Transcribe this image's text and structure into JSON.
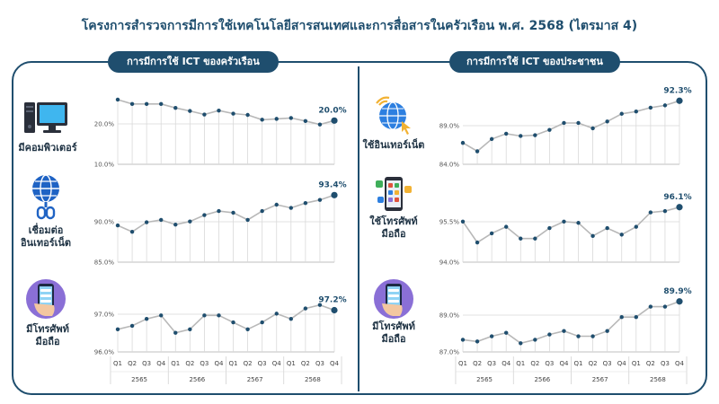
{
  "title": "โครงการสำรวจการมีการใช้เทคโนโลยีสารสนเทศและการสื่อสารในครัวเรือน พ.ศ. 2568 (ไตรมาส 4)",
  "sections": {
    "household": "การมีการใช้ ICT ของครัวเรือน",
    "population": "การมีการใช้ ICT ของประชาชน"
  },
  "axis": {
    "quarters": [
      "Q1",
      "Q2",
      "Q3",
      "Q4",
      "Q1",
      "Q2",
      "Q3",
      "Q4",
      "Q1",
      "Q2",
      "Q3",
      "Q4",
      "Q1",
      "Q2",
      "Q3",
      "Q4"
    ],
    "years": [
      "2565",
      "2566",
      "2567",
      "2568"
    ]
  },
  "labels": {
    "hh_computer": [
      "มีคอมพิวเตอร์"
    ],
    "hh_internet": [
      "เชื่อมต่อ",
      "อินเทอร์เน็ต"
    ],
    "hh_mobile": [
      "มีโทรศัพท์",
      "มือถือ"
    ],
    "pop_internet": [
      "ใช้อินเทอร์เน็ต"
    ],
    "pop_mobile_use": [
      "ใช้โทรศัพท์",
      "มือถือ"
    ],
    "pop_mobile_own": [
      "มีโทรศัพท์",
      "มือถือ"
    ]
  },
  "colors": {
    "navy": "#1f4e6e",
    "line": "#b8b8b8",
    "point": "#1f4e6e",
    "grid": "#d9d9d9"
  },
  "icons": {
    "hh_computer": "desktop-computer-icon",
    "hh_internet": "globe-link-icon",
    "hh_mobile": "smartphone-hand-icon",
    "pop_internet": "globe-cursor-icon",
    "pop_mobile_use": "smartphone-apps-icon",
    "pop_mobile_own": "smartphone-hand-icon"
  },
  "chart_data": [
    {
      "id": "hh_computer",
      "type": "line",
      "title": "มีคอมพิวเตอร์",
      "yticks": [
        "20.0%",
        "10.0%"
      ],
      "ylim": [
        10,
        25
      ],
      "last_label": "20.0%",
      "values": [
        24.8,
        23.8,
        23.8,
        23.8,
        22.9,
        22.2,
        21.4,
        22.3,
        21.6,
        21.3,
        20.2,
        20.4,
        20.6,
        19.9,
        19.1,
        20.0
      ]
    },
    {
      "id": "hh_internet",
      "type": "line",
      "title": "เชื่อมต่อ อินเทอร์เน็ต",
      "yticks": [
        "90.0%",
        "85.0%"
      ],
      "ylim": [
        85,
        94
      ],
      "last_label": "93.4%",
      "values": [
        89.6,
        88.8,
        90.0,
        90.3,
        89.7,
        90.1,
        90.9,
        91.4,
        91.2,
        90.3,
        91.4,
        92.2,
        91.8,
        92.4,
        92.8,
        93.4
      ]
    },
    {
      "id": "hh_mobile",
      "type": "line",
      "title": "มีโทรศัพท์ มือถือ",
      "yticks": [
        "97.0%",
        "96.0%"
      ],
      "ylim": [
        96,
        97.6
      ],
      "last_label": "97.2%",
      "values": [
        96.65,
        96.75,
        96.95,
        97.05,
        96.55,
        96.65,
        97.05,
        97.05,
        96.85,
        96.65,
        96.85,
        97.1,
        96.95,
        97.25,
        97.35,
        97.2
      ]
    },
    {
      "id": "pop_internet",
      "type": "line",
      "title": "ใช้อินเทอร์เน็ต",
      "yticks": [
        "89.0%",
        "84.0%"
      ],
      "ylim": [
        84,
        92.8
      ],
      "last_label": "92.3%",
      "values": [
        86.8,
        85.7,
        87.3,
        88.0,
        87.7,
        87.8,
        88.5,
        89.4,
        89.4,
        88.7,
        89.6,
        90.6,
        90.9,
        91.4,
        91.7,
        92.3
      ]
    },
    {
      "id": "pop_mobile_use",
      "type": "line",
      "title": "ใช้โทรศัพท์ มือถือ",
      "yticks": [
        "95.5%",
        "94.0%"
      ],
      "ylim": [
        94,
        96.4
      ],
      "last_label": "96.1%",
      "values": [
        95.55,
        94.75,
        95.1,
        95.35,
        94.9,
        94.9,
        95.3,
        95.55,
        95.5,
        95.0,
        95.3,
        95.05,
        95.35,
        95.9,
        95.95,
        96.1
      ]
    },
    {
      "id": "pop_mobile_own",
      "type": "line",
      "title": "มีโทรศัพท์ มือถือ",
      "yticks": [
        "89.0%",
        "87.0%"
      ],
      "ylim": [
        87,
        90.3
      ],
      "last_label": "89.9%",
      "values": [
        87.7,
        87.6,
        87.9,
        88.1,
        87.5,
        87.7,
        88.0,
        88.2,
        87.9,
        87.9,
        88.2,
        89.0,
        89.0,
        89.6,
        89.6,
        89.9
      ]
    }
  ]
}
